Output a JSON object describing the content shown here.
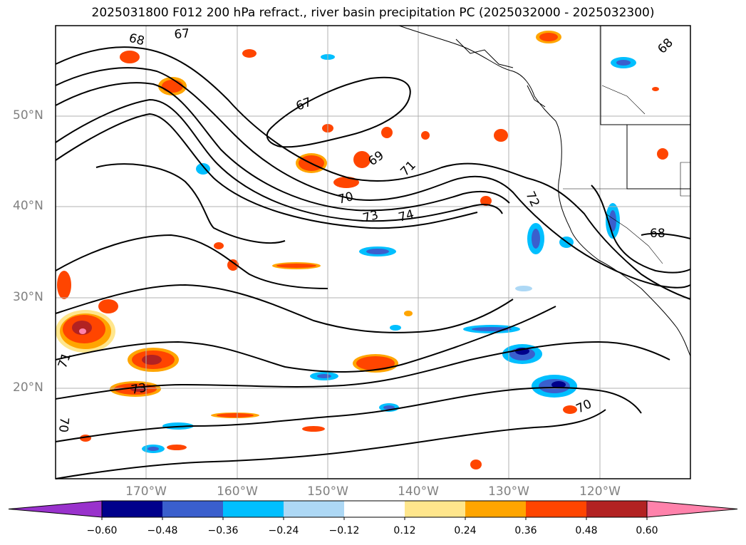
{
  "title": "2025031800 F012 200 hPa refract., river basin precipitation PC (2025032000 - 2025032300)",
  "lat_labels": [
    "50°N",
    "40°N",
    "30°N",
    "20°N"
  ],
  "lon_labels": [
    "170°W",
    "160°W",
    "150°W",
    "140°W",
    "130°W",
    "120°W"
  ],
  "contour_labels": [
    "68",
    "67",
    "67",
    "69",
    "71",
    "70",
    "73",
    "74",
    "72",
    "68",
    "68",
    "71",
    "73",
    "70",
    "70"
  ],
  "colorbar": {
    "ticks": [
      "−0.60",
      "−0.48",
      "−0.36",
      "−0.24",
      "−0.12",
      "0.12",
      "0.24",
      "0.36",
      "0.48",
      "0.60"
    ],
    "colors": [
      "#9932cc",
      "#00008b",
      "#3a5fcd",
      "#00bfff",
      "#add8f5",
      "#ffffff",
      "#ffe68c",
      "#ffa500",
      "#ff4500",
      "#b22222",
      "#ff82ab"
    ]
  }
}
